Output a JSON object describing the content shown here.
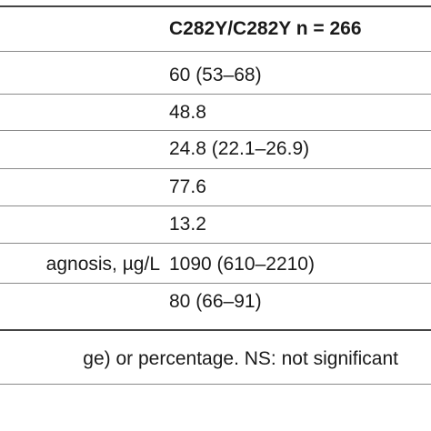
{
  "table": {
    "header_right": "C282Y/C282Y n = 266",
    "rows": [
      {
        "left": "",
        "right": "60 (53–68)"
      },
      {
        "left": "",
        "right": "48.8"
      },
      {
        "left": "",
        "right": "24.8 (22.1–26.9)"
      },
      {
        "left": "",
        "right": "77.6"
      },
      {
        "left": "",
        "right": "13.2"
      },
      {
        "left": "agnosis, µg/L",
        "right": "1090 (610–2210)"
      },
      {
        "left": "",
        "right": "80 (66–91)"
      }
    ]
  },
  "footnote": "ge) or percentage. NS: not significant"
}
